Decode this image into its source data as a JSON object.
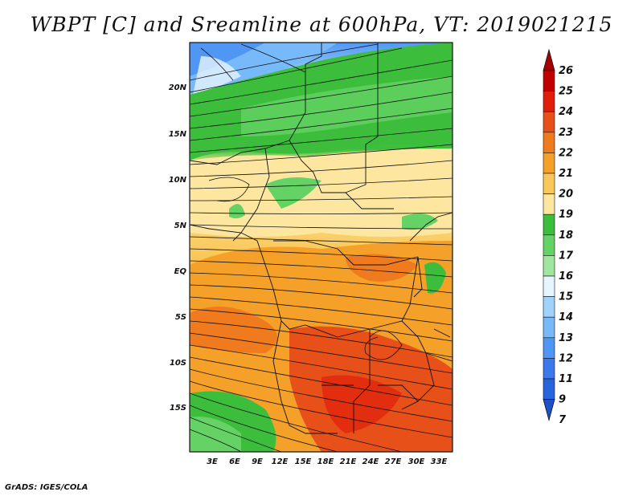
{
  "title": "WBPT [C] and Sreamline at 600hPa, VT: 2019021215",
  "footer": "GrADS: IGES/COLA",
  "map": {
    "lat_labels": [
      "20N",
      "15N",
      "10N",
      "5N",
      "EQ",
      "5S",
      "10S",
      "15S"
    ],
    "lon_labels": [
      "3E",
      "6E",
      "9E",
      "12E",
      "15E",
      "18E",
      "21E",
      "24E",
      "27E",
      "30E",
      "33E"
    ],
    "lat_range": [
      -19,
      25
    ],
    "lon_range": [
      0,
      35
    ],
    "field": "WBPT",
    "units": "C",
    "level": "600hPa",
    "valid_time": "2019021215"
  },
  "colorbar": {
    "labels": [
      "26",
      "25",
      "24",
      "23",
      "22",
      "21",
      "20",
      "19",
      "18",
      "17",
      "16",
      "15",
      "14",
      "13",
      "12",
      "11",
      "9",
      "7"
    ],
    "colors": [
      "#a50000",
      "#c30000",
      "#e01e0a",
      "#e8501a",
      "#f07a1e",
      "#f5a028",
      "#fac85a",
      "#fde6a0",
      "#3cbe3c",
      "#64d264",
      "#a0e6a0",
      "#e6f5ff",
      "#a0d2fa",
      "#78b9fa",
      "#5096f5",
      "#3c78eb",
      "#2864dc",
      "#1e50c8"
    ]
  }
}
